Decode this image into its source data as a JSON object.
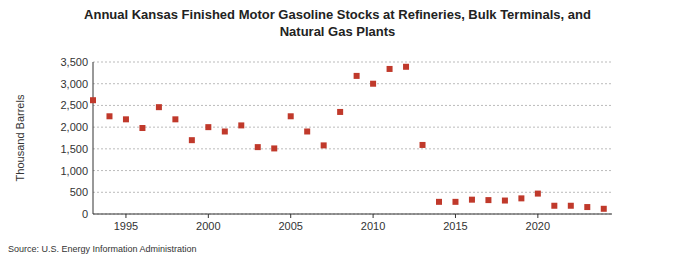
{
  "chart_data": {
    "type": "scatter",
    "title": "Annual Kansas Finished Motor Gasoline Stocks at Refineries, Bulk Terminals, and Natural Gas Plants",
    "y_label": "Thousand Barrels",
    "source": "Source: U.S. Energy Information Administration",
    "x": [
      1993,
      1994,
      1995,
      1996,
      1997,
      1998,
      1999,
      2000,
      2001,
      2002,
      2003,
      2004,
      2005,
      2006,
      2007,
      2008,
      2009,
      2010,
      2011,
      2012,
      2013,
      2014,
      2015,
      2016,
      2017,
      2018,
      2019,
      2020,
      2021,
      2022,
      2023,
      2024
    ],
    "values": [
      2620,
      2250,
      2180,
      1980,
      2460,
      2180,
      1700,
      2000,
      1900,
      2040,
      1540,
      1510,
      2250,
      1900,
      1580,
      2350,
      3180,
      3000,
      3340,
      3390,
      1590,
      280,
      280,
      330,
      320,
      310,
      360,
      470,
      190,
      190,
      160,
      120
    ],
    "color": "#c0392b",
    "marker": "square",
    "xlim": [
      1993,
      2024.5
    ],
    "xticks": [
      1995,
      2000,
      2005,
      2010,
      2015,
      2020
    ],
    "ylim": [
      0,
      3500
    ],
    "yticks": [
      0,
      500,
      {
        "value": 1000,
        "label": "1,000"
      },
      {
        "value": 1500,
        "label": "1,500"
      },
      {
        "value": 2000,
        "label": "2,000"
      },
      {
        "value": 2500,
        "label": "2,500"
      },
      {
        "value": 3000,
        "label": "3,000"
      },
      {
        "value": 3500,
        "label": "3,500"
      }
    ],
    "grid": true
  }
}
